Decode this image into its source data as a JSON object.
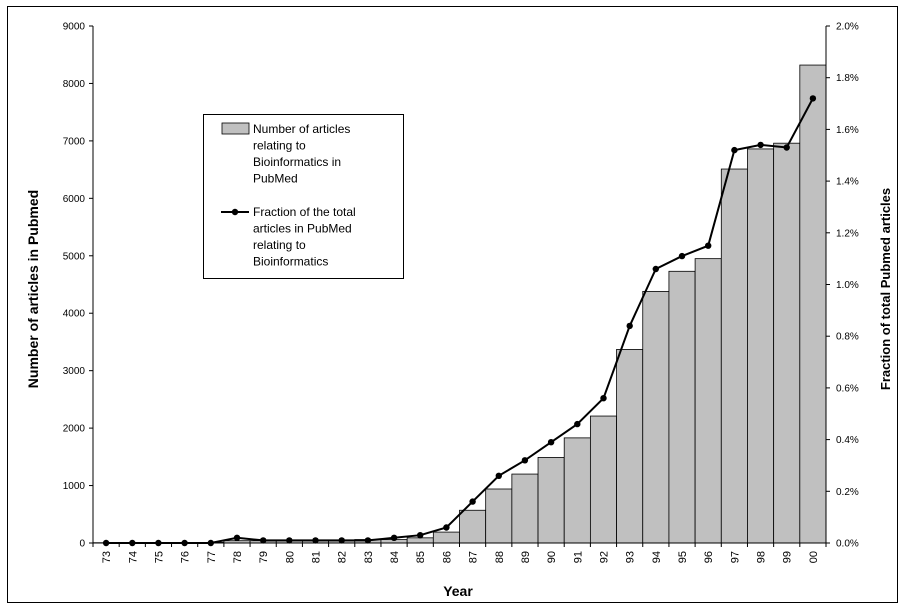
{
  "chart_data": {
    "type": "bar",
    "title": "",
    "xlabel": "Year",
    "ylabel": "Number of articles in Pubmed",
    "y2label": "Fraction of total Pubmed articles",
    "ylim": [
      0,
      9000
    ],
    "y2lim": [
      0,
      2.0
    ],
    "yticks": [
      "0",
      "1000",
      "2000",
      "3000",
      "4000",
      "5000",
      "6000",
      "7000",
      "8000",
      "9000"
    ],
    "y2ticks": [
      "0.0%",
      "0.2%",
      "0.4%",
      "0.6%",
      "0.8%",
      "1.0%",
      "1.2%",
      "1.4%",
      "1.6%",
      "1.8%",
      "2.0%"
    ],
    "grid": false,
    "legend_position": "upper-left-inside",
    "categories": [
      "73",
      "74",
      "75",
      "76",
      "77",
      "78",
      "79",
      "80",
      "81",
      "82",
      "83",
      "84",
      "85",
      "86",
      "87",
      "88",
      "89",
      "90",
      "91",
      "92",
      "93",
      "94",
      "95",
      "96",
      "97",
      "98",
      "99",
      "00"
    ],
    "series": [
      {
        "name": "Number of articles relating to Bioinformatics in PubMed",
        "type": "bar",
        "axis": "left",
        "values": [
          5,
          5,
          5,
          5,
          10,
          40,
          40,
          50,
          50,
          40,
          60,
          60,
          90,
          190,
          570,
          940,
          1200,
          1490,
          1830,
          2210,
          3370,
          4380,
          4730,
          4950,
          6510,
          6860,
          6960,
          8320
        ],
        "color": "#c0c0c0"
      },
      {
        "name": "Fraction of the total articles in PubMed relating to Bioinformatics",
        "type": "line",
        "axis": "right",
        "unit": "%",
        "values": [
          0.0,
          0.0,
          0.0,
          0.0,
          0.0,
          0.02,
          0.01,
          0.01,
          0.01,
          0.01,
          0.01,
          0.02,
          0.03,
          0.06,
          0.16,
          0.26,
          0.32,
          0.39,
          0.46,
          0.56,
          0.84,
          1.06,
          1.11,
          1.15,
          1.52,
          1.54,
          1.53,
          1.72
        ],
        "color": "#000000"
      }
    ],
    "legend": [
      {
        "series": 0,
        "lines": [
          "Number of articles",
          "relating to",
          "Bioinformatics in",
          "PubMed"
        ]
      },
      {
        "series": 1,
        "lines": [
          "Fraction of the total",
          "articles in PubMed",
          "relating to",
          "Bioinformatics"
        ]
      }
    ]
  }
}
